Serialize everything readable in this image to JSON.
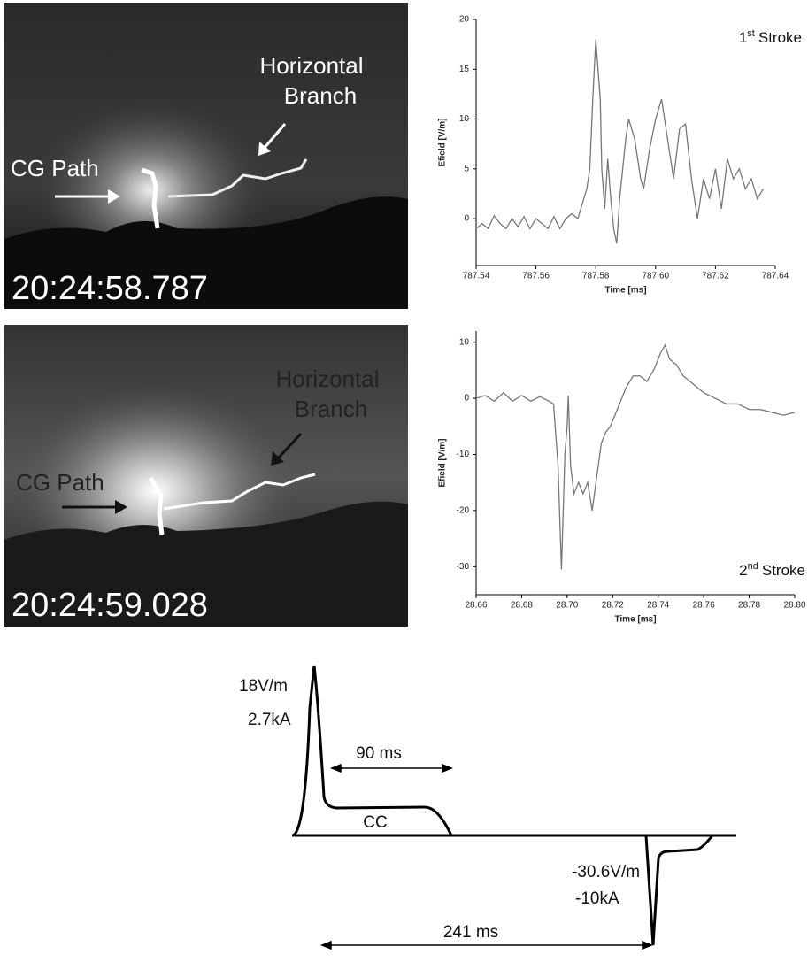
{
  "photos": [
    {
      "timestamp": "20:24:58.787",
      "branch_label": [
        "Horizontal",
        "Branch"
      ],
      "path_label": "CG Path"
    },
    {
      "timestamp": "20:24:59.028",
      "branch_label": [
        "Horizontal",
        "Branch"
      ],
      "path_label": "CG Path"
    }
  ],
  "chart_data": [
    {
      "type": "line",
      "annotation_number": "1",
      "annotation_suffix": "st",
      "annotation_text": "Stroke",
      "x_label": "Time [ms]",
      "y_label": "Efield [V/m]",
      "color": "#777777",
      "xlim": [
        787.54,
        787.64
      ],
      "xticks": [
        787.54,
        787.56,
        787.58,
        {
          "value": 787.6,
          "label": "787.60"
        },
        787.62,
        787.64
      ],
      "ylim": [
        -4.7,
        20
      ],
      "yticks": [
        0,
        5,
        10,
        15,
        20
      ],
      "x": [
        787.54,
        787.542,
        787.544,
        787.546,
        787.548,
        787.55,
        787.552,
        787.554,
        787.556,
        787.558,
        787.56,
        787.562,
        787.564,
        787.566,
        787.568,
        787.57,
        787.572,
        787.574,
        787.576,
        787.577,
        787.578,
        787.579,
        787.58,
        787.5815,
        787.582,
        787.583,
        787.584,
        787.585,
        787.586,
        787.587,
        787.588,
        787.59,
        787.591,
        787.593,
        787.595,
        787.596,
        787.598,
        787.6,
        787.602,
        787.604,
        787.606,
        787.608,
        787.61,
        787.612,
        787.614,
        787.616,
        787.618,
        787.62,
        787.622,
        787.624,
        787.626,
        787.628,
        787.63,
        787.632,
        787.634,
        787.636
      ],
      "series": [
        {
          "values": [
            -1,
            -0.5,
            -1,
            0.3,
            -0.5,
            -1,
            0,
            -0.8,
            0.2,
            -1,
            0,
            -0.5,
            -1,
            0.2,
            -1,
            0,
            0.5,
            0,
            2,
            3,
            5,
            12,
            18,
            12,
            5,
            1,
            6,
            2,
            -1,
            -2.5,
            2,
            8,
            10,
            8,
            4,
            3,
            7,
            10,
            12,
            8,
            4,
            9,
            9.5,
            4,
            0,
            4,
            2,
            5,
            1,
            6,
            4,
            5,
            3,
            4,
            2,
            3
          ]
        }
      ]
    },
    {
      "type": "line",
      "annotation_number": "2",
      "annotation_suffix": "nd",
      "annotation_text": "Stroke",
      "x_label": "Time [ms]",
      "y_label": "Efield [V/m]",
      "color": "#777777",
      "xlim": [
        28.66,
        28.8
      ],
      "xticks": [
        28.66,
        28.68,
        {
          "value": 28.7,
          "label": "28.70"
        },
        28.72,
        28.74,
        28.76,
        28.78,
        {
          "value": 28.8,
          "label": "28.80"
        }
      ],
      "ylim": [
        -35,
        12
      ],
      "yticks": [
        -30,
        -20,
        -10,
        0,
        10
      ],
      "x": [
        28.66,
        28.664,
        28.668,
        28.672,
        28.676,
        28.68,
        28.684,
        28.688,
        28.692,
        28.694,
        28.696,
        28.6975,
        28.699,
        28.7,
        28.7005,
        28.7015,
        28.703,
        28.705,
        28.707,
        28.709,
        28.711,
        28.713,
        28.715,
        28.717,
        28.719,
        28.721,
        28.723,
        28.726,
        28.729,
        28.732,
        28.735,
        28.738,
        28.741,
        28.743,
        28.745,
        28.748,
        28.751,
        28.754,
        28.757,
        28.76,
        28.765,
        28.77,
        28.775,
        28.78,
        28.785,
        28.79,
        28.795,
        28.8
      ],
      "series": [
        {
          "values": [
            0,
            0.5,
            -0.5,
            1,
            -0.5,
            0.5,
            -0.5,
            0.3,
            -0.5,
            -1,
            -12,
            -30.5,
            -10,
            -5,
            0.5,
            -12,
            -17,
            -15,
            -17,
            -15,
            -20,
            -14,
            -8,
            -6,
            -5,
            -3,
            -1,
            2,
            4,
            4,
            3,
            5,
            8,
            9.5,
            7,
            6,
            4,
            3,
            2,
            1,
            0,
            -1,
            -1,
            -2,
            -2,
            -2.5,
            -3,
            -2.5
          ]
        }
      ]
    }
  ],
  "schematic": {
    "peak1_field": "18V/m",
    "peak1_current": "2.7kA",
    "interval1": "90 ms",
    "cc_label": "CC",
    "peak2_field": "-30.6V/m",
    "peak2_current": "-10kA",
    "interval2": "241 ms"
  }
}
